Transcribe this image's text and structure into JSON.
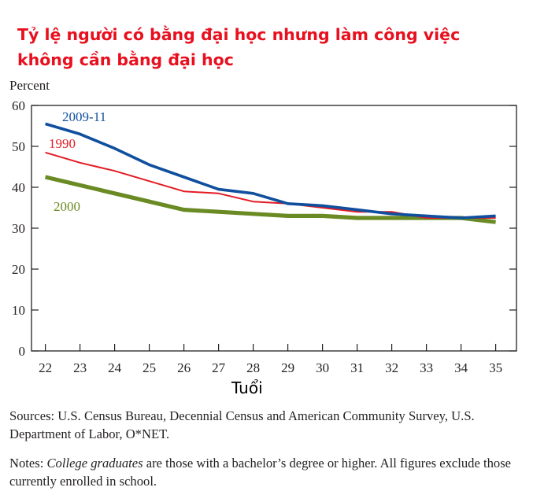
{
  "title_line1": "Tỷ lệ người có bằng đại học nhưng làm công việc",
  "title_line2": "không cần bằng đại học",
  "sources_text": "Sources: U.S. Census Bureau, Decennial Census and American Community Survey, U.S. Department of Labor, O*NET.",
  "notes": {
    "prefix": "Notes: ",
    "italic": "College graduates",
    "rest": " are those with a bachelor’s degree or higher. All figures exclude those currently enrolled in school."
  },
  "colors": {
    "title": "#e8101e",
    "series_2009": "#0f4f9e",
    "series_1990": "#e31b23",
    "series_2000": "#6a8a23",
    "axis": "#231f20"
  },
  "chart_data": {
    "type": "line",
    "title": "",
    "ylabel": "Percent",
    "xlabel": "Tuổi",
    "x": [
      22,
      23,
      24,
      25,
      26,
      27,
      28,
      29,
      30,
      31,
      32,
      33,
      34,
      35
    ],
    "xlim": [
      21.6,
      35.6
    ],
    "ylim": [
      0,
      60
    ],
    "yticks": [
      0,
      10,
      20,
      30,
      40,
      50,
      60
    ],
    "grid": false,
    "legend": "inline labels",
    "series": [
      {
        "name": "2009-11",
        "color": "#0f4f9e",
        "values": [
          55.5,
          53.0,
          49.5,
          45.5,
          42.5,
          39.5,
          38.5,
          36.0,
          35.5,
          34.5,
          33.5,
          33.0,
          32.5,
          33.0
        ]
      },
      {
        "name": "1990",
        "color": "#e31b23",
        "values": [
          48.5,
          46.0,
          44.0,
          41.5,
          39.0,
          38.5,
          36.5,
          36.0,
          35.0,
          34.0,
          34.0,
          32.5,
          32.5,
          32.5
        ]
      },
      {
        "name": "2000",
        "color": "#6a8a23",
        "values": [
          42.5,
          40.5,
          38.5,
          36.5,
          34.5,
          34.0,
          33.5,
          33.0,
          33.0,
          32.5,
          32.5,
          32.5,
          32.5,
          31.5
        ]
      }
    ]
  }
}
